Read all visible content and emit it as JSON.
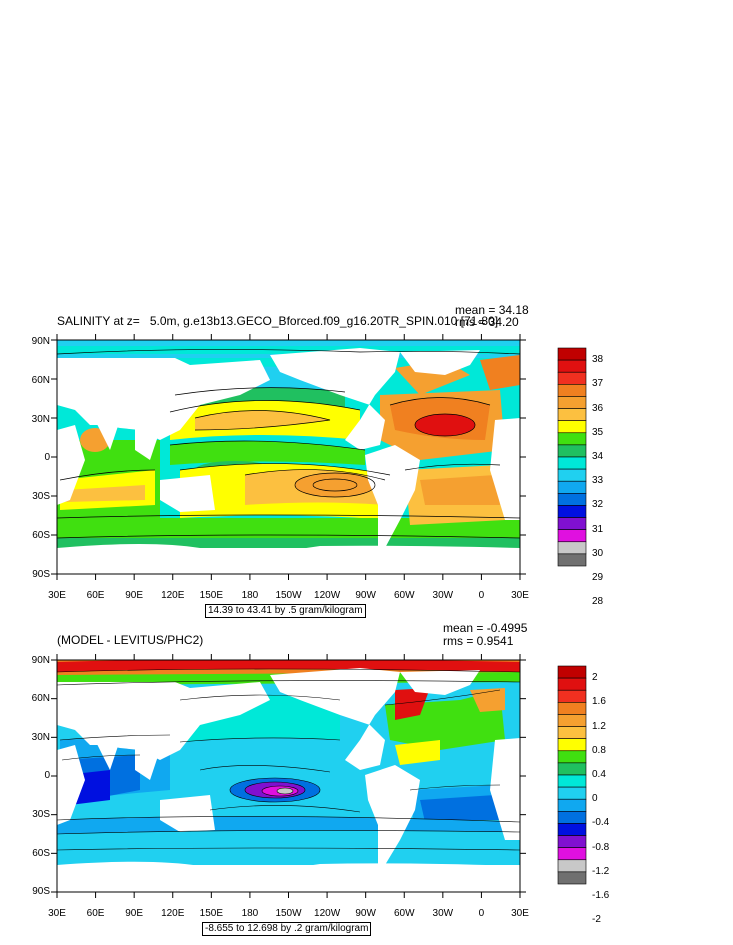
{
  "panels": [
    {
      "id": "top",
      "title_left": "SALINITY at z=   5.0m, g.e13b13.GECO_Bforced.f09_g16.20TR_SPIN.010 [71-80]",
      "stat_mean": "mean = 34.18",
      "stat_rms": "rms = 34.20",
      "info_box": "14.39 to 43.41 by .5 gram/kilogram",
      "lat_labels": [
        "90N",
        "60N",
        "30N",
        "0",
        "30S",
        "60S",
        "90S"
      ],
      "lon_labels": [
        "30E",
        "60E",
        "90E",
        "120E",
        "150E",
        "180",
        "150W",
        "120W",
        "90W",
        "60W",
        "30W",
        "0",
        "30E"
      ],
      "colorbar": {
        "labels": [
          "38",
          "37",
          "36",
          "35",
          "34",
          "33",
          "32",
          "31",
          "30",
          "29",
          "28"
        ],
        "colors": [
          "#c00000",
          "#e01010",
          "#f03020",
          "#f08020",
          "#f5a030",
          "#fcc040",
          "#ffff00",
          "#40e010",
          "#20c060",
          "#00e8d8",
          "#20d0f0",
          "#10a8f0",
          "#0070e0",
          "#0010e0",
          "#8010d0",
          "#e010e0",
          "#c8c8c8",
          "#707070"
        ]
      }
    },
    {
      "id": "bottom",
      "title_left": "(MODEL - LEVITUS/PHC2)",
      "stat_mean": "mean = -0.4995",
      "stat_rms": "rms = 0.9541",
      "info_box": "-8.655 to 12.698 by .2 gram/kilogram",
      "lat_labels": [
        "90N",
        "60N",
        "30N",
        "0",
        "30S",
        "60S",
        "90S"
      ],
      "lon_labels": [
        "30E",
        "60E",
        "90E",
        "120E",
        "150E",
        "180",
        "150W",
        "120W",
        "90W",
        "60W",
        "30W",
        "0",
        "30E"
      ],
      "colorbar": {
        "labels": [
          "2",
          "1.6",
          "1.2",
          "0.8",
          "0.4",
          "0",
          "-0.4",
          "-0.8",
          "-1.2",
          "-1.6",
          "-2"
        ],
        "colors": [
          "#c00000",
          "#e01010",
          "#f03020",
          "#f08020",
          "#f5a030",
          "#fcc040",
          "#ffff00",
          "#40e010",
          "#20c060",
          "#00e8d8",
          "#20d0f0",
          "#10a8f0",
          "#0070e0",
          "#0010e0",
          "#8010d0",
          "#e010e0",
          "#c8c8c8",
          "#707070"
        ]
      }
    }
  ]
}
